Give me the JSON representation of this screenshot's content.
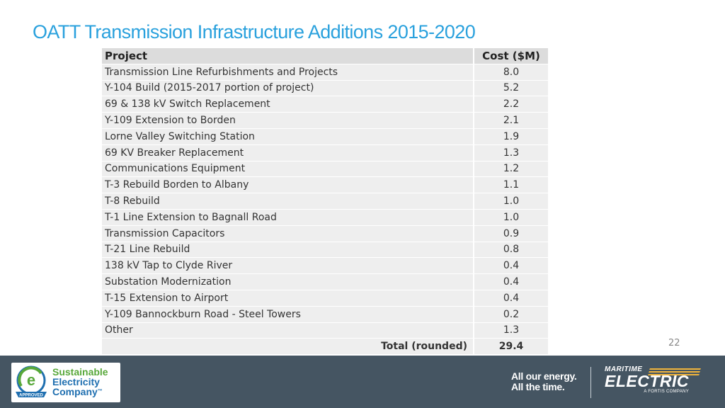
{
  "title": "OATT Transmission Infrastructure Additions 2015-2020",
  "table": {
    "headers": {
      "project": "Project",
      "cost": "Cost ($M)"
    },
    "rows": [
      {
        "project": "Transmission Line Refurbishments and Projects",
        "cost": "8.0"
      },
      {
        "project": "Y-104 Build (2015-2017 portion of project)",
        "cost": "5.2"
      },
      {
        "project": "69 & 138 kV Switch Replacement",
        "cost": "2.2"
      },
      {
        "project": "Y-109 Extension to Borden",
        "cost": "2.1"
      },
      {
        "project": "Lorne Valley Switching Station",
        "cost": "1.9"
      },
      {
        "project": "69 KV Breaker Replacement",
        "cost": "1.3"
      },
      {
        "project": "Communications Equipment",
        "cost": "1.2"
      },
      {
        "project": "T-3 Rebuild Borden to Albany",
        "cost": "1.1"
      },
      {
        "project": "T-8 Rebuild",
        "cost": "1.0"
      },
      {
        "project": "T-1 Line Extension to Bagnall Road",
        "cost": "1.0"
      },
      {
        "project": "Transmission Capacitors",
        "cost": "0.9"
      },
      {
        "project": "T-21 Line Rebuild",
        "cost": "0.8"
      },
      {
        "project": "138 kV Tap to Clyde River",
        "cost": "0.4"
      },
      {
        "project": "Substation Modernization",
        "cost": "0.4"
      },
      {
        "project": "T-15 Extension to Airport",
        "cost": "0.4"
      },
      {
        "project": "Y-109 Bannockburn Road - Steel Towers",
        "cost": "0.2"
      },
      {
        "project": "Other",
        "cost": "1.3"
      }
    ],
    "total": {
      "label": "Total (rounded)",
      "value": "29.4"
    }
  },
  "page_number": "22",
  "footer": {
    "left_logo": {
      "line1": "Sustainable",
      "line2": "Electricity",
      "line3": "Company",
      "tm": "™",
      "badge": "APPROVED"
    },
    "tagline": {
      "line1": "All our energy.",
      "line2": "All the time."
    },
    "brand": {
      "top": "MARITIME",
      "main": "ELECTRIC",
      "sub": "A FORTIS COMPANY"
    },
    "colors": {
      "background": "#455562",
      "title": "#2aa1dd"
    }
  }
}
